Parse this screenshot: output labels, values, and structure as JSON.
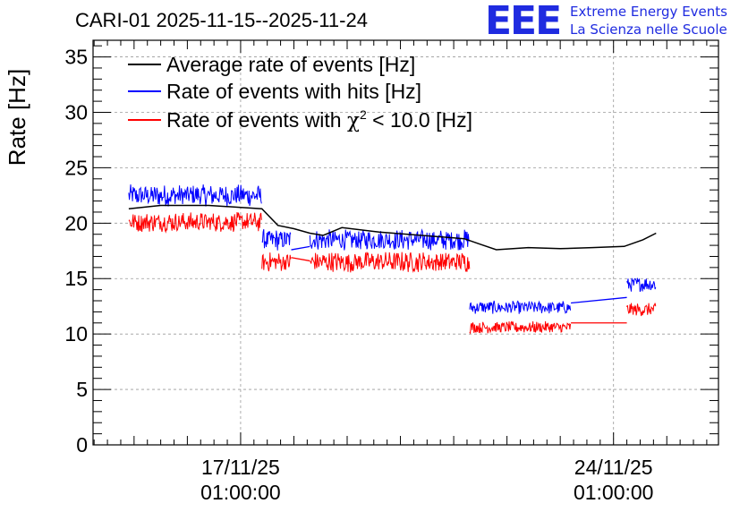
{
  "header": {
    "title": "CARI-01 2025-11-15--2025-11-24",
    "brand": "EEE",
    "brand_line1": "Extreme Energy Events",
    "brand_line2": "La Scienza nelle Scuole",
    "brand_color": "#1f2be0"
  },
  "chart_data": {
    "type": "line",
    "ylabel": "Rate [Hz]",
    "ylim": [
      0,
      36.5
    ],
    "yticks": [
      0,
      5,
      10,
      15,
      20,
      25,
      30,
      35
    ],
    "xlim_days": [
      -2.77,
      8.97
    ],
    "xticks": [
      {
        "day": 0,
        "label_date": "17/11/25",
        "label_time": "01:00:00"
      },
      {
        "day": 7,
        "label_date": "24/11/25",
        "label_time": "01:00:00"
      }
    ],
    "grid": true,
    "legend_position": "top-left",
    "series": [
      {
        "name": "Average rate of events [Hz]",
        "color": "#000000",
        "points": [
          [
            -2.1,
            21.3
          ],
          [
            -1.5,
            21.6
          ],
          [
            -0.6,
            21.6
          ],
          [
            0.4,
            21.3
          ],
          [
            0.7,
            19.8
          ],
          [
            1.0,
            19.5
          ],
          [
            1.3,
            19.1
          ],
          [
            1.55,
            18.9
          ],
          [
            1.9,
            19.6
          ],
          [
            2.6,
            19.2
          ],
          [
            3.4,
            18.9
          ],
          [
            4.2,
            18.6
          ],
          [
            4.5,
            18.1
          ],
          [
            4.8,
            17.6
          ],
          [
            5.4,
            17.8
          ],
          [
            6.0,
            17.7
          ],
          [
            6.6,
            17.8
          ],
          [
            7.2,
            17.9
          ],
          [
            7.55,
            18.5
          ],
          [
            7.8,
            19.1
          ]
        ]
      },
      {
        "name": "Rate of events with hits [Hz]",
        "color": "#0000ff",
        "segments": [
          {
            "x": [
              -2.1,
              0.4
            ],
            "center": 22.5,
            "spread": 1.0
          },
          {
            "x": [
              0.4,
              0.95
            ],
            "center": 18.5,
            "spread": 1.0
          },
          {
            "x": [
              1.3,
              4.3
            ],
            "center": 18.5,
            "spread": 0.95
          },
          {
            "x": [
              4.3,
              6.2
            ],
            "center": 12.4,
            "spread": 0.6
          },
          {
            "x": [
              7.25,
              7.8
            ],
            "center": 14.5,
            "spread": 0.7
          }
        ],
        "gap_links": [
          [
            0.95,
            17.6,
            1.3,
            17.9
          ],
          [
            6.2,
            12.8,
            7.25,
            13.3
          ]
        ]
      },
      {
        "name": "Rate of events with χ2 < 10.0 [Hz]",
        "name_parts": {
          "before": "Rate of events with ",
          "greek": "χ",
          "sup": "2",
          "after": " < 10.0 [Hz]"
        },
        "color": "#ff0000",
        "segments": [
          {
            "x": [
              -2.1,
              0.4
            ],
            "center": 20.1,
            "spread": 0.9
          },
          {
            "x": [
              0.4,
              0.95
            ],
            "center": 16.5,
            "spread": 0.9
          },
          {
            "x": [
              1.3,
              4.3
            ],
            "center": 16.5,
            "spread": 0.95
          },
          {
            "x": [
              4.3,
              6.2
            ],
            "center": 10.6,
            "spread": 0.55
          },
          {
            "x": [
              7.25,
              7.8
            ],
            "center": 12.2,
            "spread": 0.6
          }
        ],
        "gap_links": [
          [
            0.95,
            16.9,
            1.3,
            16.6
          ],
          [
            6.2,
            11.0,
            7.25,
            11.0
          ]
        ]
      }
    ]
  }
}
